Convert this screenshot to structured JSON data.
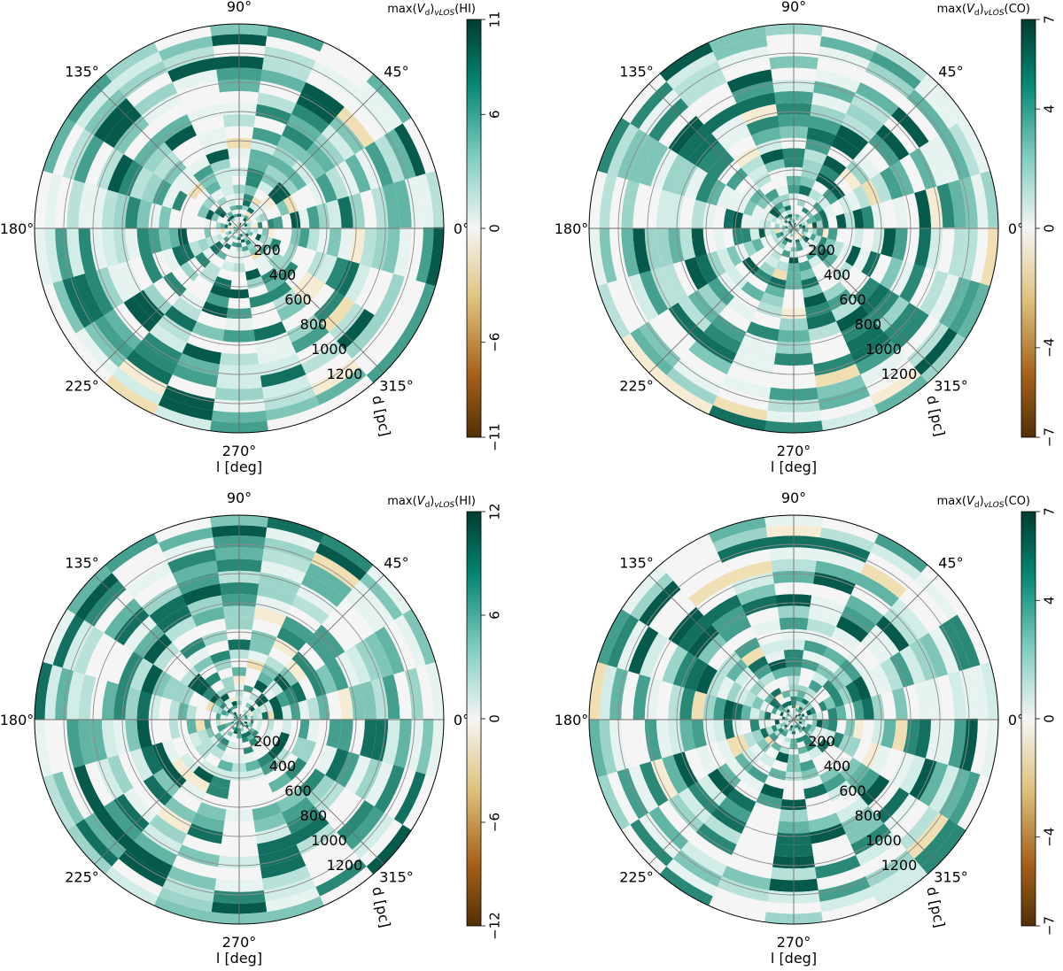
{
  "chart_data": [
    {
      "type": "heatmap",
      "projection": "polar",
      "angular_ticks": [
        "0°",
        "45°",
        "90°",
        "135°",
        "180°",
        "225°",
        "270°",
        "315°"
      ],
      "radial_ticks": [
        "200",
        "400",
        "600",
        "800",
        "1000",
        "1200"
      ],
      "radial_range": [
        0,
        1400
      ],
      "angular_label": "l [deg]",
      "radial_label": "d [pc]",
      "colorbar": {
        "title": "max(V_d)_vLOS(HI)",
        "ticks": [
          "11",
          "6",
          "0",
          "−6",
          "−11"
        ],
        "range": [
          -11,
          11
        ],
        "cmap": "BrBG"
      },
      "grid": true
    },
    {
      "type": "heatmap",
      "projection": "polar",
      "angular_ticks": [
        "0°",
        "45°",
        "90°",
        "135°",
        "180°",
        "225°",
        "270°",
        "315°"
      ],
      "radial_ticks": [
        "200",
        "400",
        "600",
        "800",
        "1000",
        "1200"
      ],
      "radial_range": [
        0,
        1400
      ],
      "angular_label": "l [deg]",
      "radial_label": "d [pc]",
      "colorbar": {
        "title": "max(V_d)_vLOS(CO)",
        "ticks": [
          "7",
          "4",
          "0",
          "−4",
          "−7"
        ],
        "range": [
          -7,
          7
        ],
        "cmap": "BrBG"
      },
      "grid": true
    },
    {
      "type": "heatmap",
      "projection": "polar",
      "angular_ticks": [
        "0°",
        "45°",
        "90°",
        "135°",
        "180°",
        "225°",
        "270°",
        "315°"
      ],
      "radial_ticks": [
        "200",
        "400",
        "600",
        "800",
        "1000",
        "1200"
      ],
      "radial_range": [
        0,
        1400
      ],
      "angular_label": "l [deg]",
      "radial_label": "d [pc]",
      "colorbar": {
        "title": "max(V_d)_vLOS(HI)",
        "ticks": [
          "12",
          "6",
          "0",
          "−6",
          "−12"
        ],
        "range": [
          -12,
          12
        ],
        "cmap": "BrBG"
      },
      "grid": true
    },
    {
      "type": "heatmap",
      "projection": "polar",
      "angular_ticks": [
        "0°",
        "45°",
        "90°",
        "135°",
        "180°",
        "225°",
        "270°",
        "315°"
      ],
      "radial_ticks": [
        "200",
        "400",
        "600",
        "800",
        "1000",
        "1200"
      ],
      "radial_range": [
        0,
        1400
      ],
      "angular_label": "l [deg]",
      "radial_label": "d [pc]",
      "colorbar": {
        "title": "max(V_d)_vLOS(CO)",
        "ticks": [
          "7",
          "4",
          "0",
          "−4",
          "−7"
        ],
        "range": [
          -7,
          7
        ],
        "cmap": "BrBG"
      },
      "grid": true
    }
  ]
}
